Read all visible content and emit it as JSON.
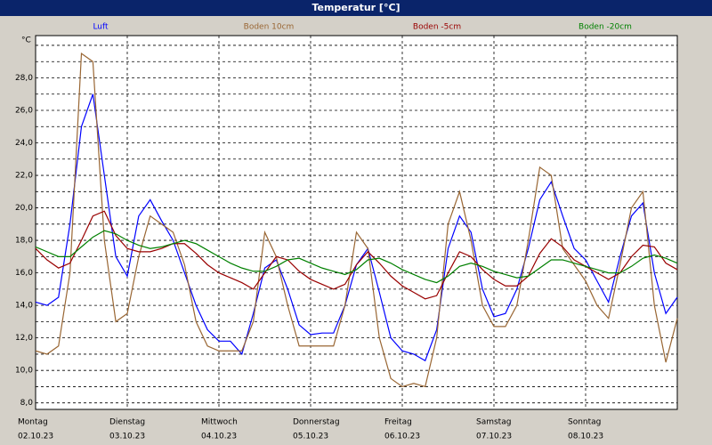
{
  "chart_data": {
    "type": "line",
    "title": "Temperatur [°C]",
    "y_unit": "°C",
    "x": [
      0,
      3,
      6,
      9,
      12,
      15,
      18,
      21,
      24,
      27,
      30,
      33,
      36,
      39,
      42,
      45,
      48,
      51,
      54,
      57,
      60,
      63,
      66,
      69,
      72,
      75,
      78,
      81,
      84,
      87,
      90,
      93,
      96,
      99,
      102,
      105,
      108,
      111,
      114,
      117,
      120,
      123,
      126,
      129,
      132,
      135,
      138,
      141,
      144,
      147,
      150,
      153,
      156,
      159,
      162,
      165,
      168
    ],
    "xlim": [
      0,
      168
    ],
    "xticks": [
      {
        "value": 0,
        "label": "Montag"
      },
      {
        "value": 24,
        "label": "Dienstag"
      },
      {
        "value": 48,
        "label": "Mittwoch"
      },
      {
        "value": 72,
        "label": "Donnerstag"
      },
      {
        "value": 96,
        "label": "Freitag"
      },
      {
        "value": 120,
        "label": "Samstag"
      },
      {
        "value": 144,
        "label": "Sonntag"
      }
    ],
    "xtick_dates": [
      "02.10.23",
      "03.10.23",
      "04.10.23",
      "05.10.23",
      "06.10.23",
      "07.10.23",
      "08.10.23"
    ],
    "ylim": [
      7.6,
      30.6
    ],
    "yticks": [
      {
        "value": 8,
        "label": "8,0"
      },
      {
        "value": 10,
        "label": "10,0"
      },
      {
        "value": 12,
        "label": "12,0"
      },
      {
        "value": 14,
        "label": "14,0"
      },
      {
        "value": 16,
        "label": "16,0"
      },
      {
        "value": 18,
        "label": "18,0"
      },
      {
        "value": 20,
        "label": "20,0"
      },
      {
        "value": 22,
        "label": "22,0"
      },
      {
        "value": 24,
        "label": "24,0"
      },
      {
        "value": 26,
        "label": "26,0"
      },
      {
        "value": 28,
        "label": "28,0"
      }
    ],
    "minor_yticks": [
      9,
      11,
      13,
      15,
      17,
      19,
      21,
      23,
      25,
      27,
      29,
      30
    ],
    "grid": true,
    "series": [
      {
        "name": "Luft",
        "color": "#0000ff",
        "values": [
          14.2,
          14.0,
          14.5,
          19.0,
          25.0,
          27.0,
          22.0,
          17.0,
          15.8,
          19.5,
          20.5,
          19.2,
          18.0,
          16.0,
          14.0,
          12.5,
          11.8,
          11.8,
          11.0,
          13.5,
          16.3,
          16.8,
          15.0,
          12.8,
          12.2,
          12.3,
          12.3,
          14.0,
          16.5,
          17.5,
          14.8,
          12.0,
          11.2,
          11.0,
          10.6,
          12.5,
          17.5,
          19.5,
          18.5,
          15.0,
          13.3,
          13.5,
          15.0,
          17.5,
          20.5,
          21.6,
          19.5,
          17.5,
          16.8,
          15.5,
          14.2,
          17.0,
          19.5,
          20.3,
          16.0,
          13.5,
          14.5
        ]
      },
      {
        "name": "Boden 10cm",
        "color": "#996633",
        "values": [
          11.2,
          11.0,
          11.5,
          16.0,
          29.5,
          29.0,
          18.0,
          13.0,
          13.5,
          17.0,
          19.5,
          19.0,
          18.5,
          16.5,
          13.0,
          11.5,
          11.2,
          11.2,
          11.2,
          13.0,
          18.5,
          17.0,
          14.0,
          11.5,
          11.5,
          11.5,
          11.5,
          14.0,
          18.5,
          17.5,
          12.0,
          9.5,
          9.0,
          9.2,
          9.0,
          12.0,
          19.0,
          21.0,
          18.0,
          14.0,
          12.7,
          12.7,
          14.0,
          18.0,
          22.5,
          22.0,
          17.5,
          16.5,
          15.5,
          14.0,
          13.2,
          16.5,
          20.0,
          21.0,
          14.0,
          10.5,
          13.2
        ]
      },
      {
        "name": "Boden -5cm",
        "color": "#990000",
        "values": [
          17.5,
          16.8,
          16.3,
          16.6,
          18.0,
          19.5,
          19.8,
          18.3,
          17.5,
          17.3,
          17.3,
          17.5,
          17.8,
          17.8,
          17.2,
          16.5,
          16.0,
          15.7,
          15.4,
          15.0,
          16.0,
          17.0,
          16.8,
          16.1,
          15.6,
          15.3,
          15.0,
          15.3,
          16.5,
          17.3,
          16.6,
          15.8,
          15.2,
          14.8,
          14.4,
          14.6,
          16.0,
          17.3,
          17.0,
          16.2,
          15.6,
          15.2,
          15.2,
          15.8,
          17.2,
          18.1,
          17.6,
          16.8,
          16.4,
          16.0,
          15.6,
          16.0,
          17.0,
          17.7,
          17.6,
          16.6,
          16.2
        ]
      },
      {
        "name": "Boden -20cm",
        "color": "#008000",
        "values": [
          17.6,
          17.3,
          17.0,
          17.0,
          17.6,
          18.2,
          18.6,
          18.4,
          18.0,
          17.7,
          17.5,
          17.6,
          17.8,
          18.0,
          17.8,
          17.4,
          17.0,
          16.6,
          16.3,
          16.1,
          16.1,
          16.4,
          16.8,
          16.9,
          16.6,
          16.3,
          16.1,
          15.9,
          16.2,
          16.8,
          16.9,
          16.6,
          16.2,
          15.9,
          15.6,
          15.4,
          15.8,
          16.4,
          16.6,
          16.4,
          16.1,
          15.9,
          15.7,
          15.8,
          16.3,
          16.8,
          16.8,
          16.6,
          16.4,
          16.2,
          16.0,
          16.0,
          16.4,
          16.9,
          17.1,
          16.9,
          16.6
        ]
      }
    ]
  }
}
